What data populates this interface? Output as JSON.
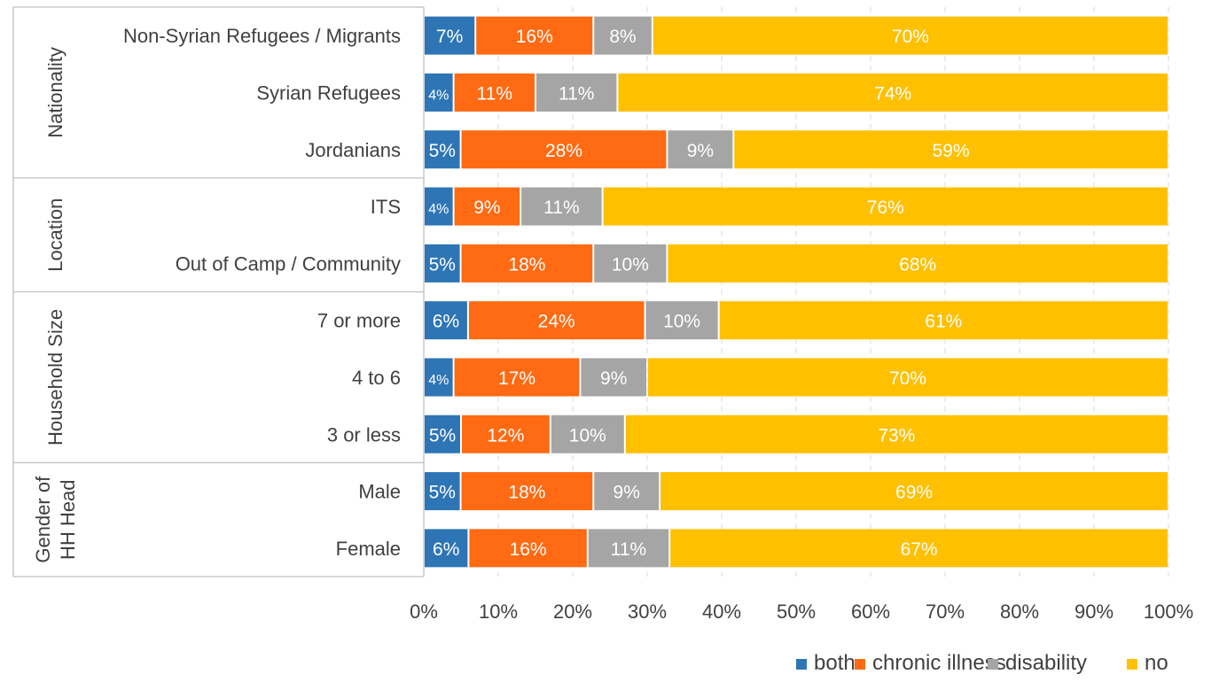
{
  "chart_data": {
    "type": "bar",
    "orientation": "horizontal",
    "stacked": "100%",
    "groups": [
      {
        "label": "Nationality",
        "categories": [
          "Non-Syrian Refugees / Migrants",
          "Syrian Refugees",
          "Jordanians"
        ]
      },
      {
        "label": "Location",
        "categories": [
          "ITS",
          "Out of Camp / Community"
        ]
      },
      {
        "label": "Household Size",
        "categories": [
          "7 or more",
          "4 to 6",
          "3 or less"
        ]
      },
      {
        "label": "Gender of HH Head",
        "categories": [
          "Male",
          "Female"
        ]
      }
    ],
    "categories": [
      "Non-Syrian Refugees / Migrants",
      "Syrian Refugees",
      "Jordanians",
      "ITS",
      "Out of Camp / Community",
      "7 or more",
      "4 to 6",
      "3 or less",
      "Male",
      "Female"
    ],
    "series": [
      {
        "name": "both",
        "color": "#2e75b6",
        "values": [
          7,
          4,
          5,
          4,
          5,
          6,
          4,
          5,
          5,
          6
        ]
      },
      {
        "name": "chronic illness",
        "color": "#ff6a13",
        "values": [
          16,
          11,
          28,
          9,
          18,
          24,
          17,
          12,
          18,
          16
        ]
      },
      {
        "name": "disability",
        "color": "#a5a5a5",
        "values": [
          8,
          11,
          9,
          11,
          10,
          10,
          9,
          10,
          9,
          11
        ]
      },
      {
        "name": "no",
        "color": "#ffc000",
        "values": [
          70,
          74,
          59,
          76,
          68,
          61,
          70,
          73,
          69,
          67
        ]
      }
    ],
    "data_labels": [
      [
        "7%",
        "16%",
        "8%",
        "70%"
      ],
      [
        "4%",
        "11%",
        "11%",
        "74%"
      ],
      [
        "5%",
        "28%",
        "9%",
        "59%"
      ],
      [
        "4%",
        "9%",
        "11%",
        "76%"
      ],
      [
        "5%",
        "18%",
        "10%",
        "68%"
      ],
      [
        "6%",
        "24%",
        "10%",
        "61%"
      ],
      [
        "4%",
        "17%",
        "9%",
        "70%"
      ],
      [
        "5%",
        "12%",
        "10%",
        "73%"
      ],
      [
        "5%",
        "18%",
        "9%",
        "69%"
      ],
      [
        "6%",
        "16%",
        "11%",
        "67%"
      ]
    ],
    "xlim": [
      0,
      100
    ],
    "xticks": [
      "0%",
      "10%",
      "20%",
      "30%",
      "40%",
      "50%",
      "60%",
      "70%",
      "80%",
      "90%",
      "100%"
    ],
    "grid": true,
    "legend_position": "bottom-right",
    "title": "",
    "xlabel": "",
    "ylabel": ""
  }
}
